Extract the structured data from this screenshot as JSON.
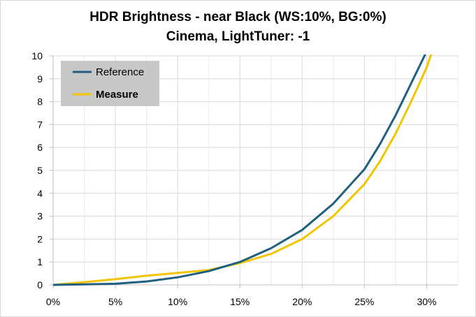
{
  "chart_data": {
    "type": "line",
    "title": "HDR Brightness - near Black (WS:10%, BG:0%)",
    "subtitle": "Cinema, LightTuner: -1",
    "xlabel": "",
    "ylabel": "",
    "xlim": [
      0,
      32.5
    ],
    "ylim": [
      0,
      10
    ],
    "x_ticks": [
      0,
      5,
      10,
      15,
      20,
      25,
      30
    ],
    "x_tick_labels": [
      "0%",
      "5%",
      "10%",
      "15%",
      "20%",
      "25%",
      "30%"
    ],
    "y_ticks": [
      0,
      1,
      2,
      3,
      4,
      5,
      6,
      7,
      8,
      9,
      10
    ],
    "y_tick_labels": [
      "0",
      "1",
      "2",
      "3",
      "4",
      "5",
      "6",
      "7",
      "8",
      "9",
      "10"
    ],
    "grid": true,
    "legend_position": "top-left",
    "series": [
      {
        "name": "Reference",
        "color": "#1f5f7f",
        "x": [
          0,
          2.5,
          5,
          7.5,
          10,
          12.5,
          15,
          17.5,
          20,
          22.5,
          25,
          26.25,
          27.5,
          28.75,
          30,
          30.1
        ],
        "y": [
          0,
          0.02,
          0.05,
          0.15,
          0.33,
          0.6,
          1.0,
          1.6,
          2.4,
          3.55,
          5.05,
          6.15,
          7.4,
          8.8,
          10.2,
          10.3
        ]
      },
      {
        "name": "Measure",
        "color": "#f2c500",
        "bold": true,
        "x": [
          0,
          2.5,
          5,
          7.5,
          10,
          12.5,
          15,
          17.5,
          20,
          22.5,
          25,
          26.25,
          27.5,
          28.75,
          30,
          30.5
        ],
        "y": [
          0,
          0.12,
          0.25,
          0.4,
          0.52,
          0.65,
          0.95,
          1.35,
          2.0,
          3.0,
          4.4,
          5.4,
          6.6,
          8.0,
          9.5,
          10.3
        ]
      }
    ]
  }
}
